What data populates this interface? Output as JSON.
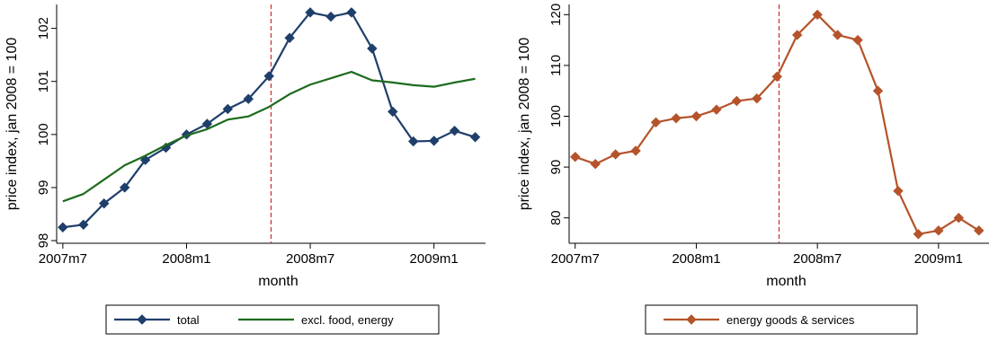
{
  "chart_data": [
    {
      "type": "line",
      "xlabel": "month",
      "ylabel": "price index, jan 2008 = 100",
      "x_ticks": [
        {
          "label": "2007m7",
          "value": 0
        },
        {
          "label": "2008m1",
          "value": 6
        },
        {
          "label": "2008m7",
          "value": 12
        },
        {
          "label": "2009m1",
          "value": 18
        }
      ],
      "y_ticks": [
        98,
        99,
        100,
        101,
        102
      ],
      "xlim": [
        -0.3,
        20.5
      ],
      "ylim": [
        97.95,
        102.45
      ],
      "reference_line": {
        "x": 10.1,
        "style": "dashed",
        "color": "#d62728"
      },
      "legend_position": "bottom",
      "series": [
        {
          "name": "total",
          "color": "#1f3f6b",
          "marker": "diamond",
          "x": [
            0,
            1,
            2,
            3,
            4,
            5,
            6,
            7,
            8,
            9,
            10,
            11,
            12,
            13,
            14,
            15,
            16,
            17,
            18,
            19,
            20
          ],
          "values": [
            98.25,
            98.3,
            98.7,
            99.0,
            99.52,
            99.75,
            100.0,
            100.2,
            100.48,
            100.67,
            101.1,
            101.82,
            102.3,
            102.22,
            102.3,
            101.62,
            100.43,
            99.87,
            99.88,
            100.07,
            99.95
          ]
        },
        {
          "name": "excl. food, energy",
          "color": "#1d6b1d",
          "marker": "none",
          "x": [
            0,
            1,
            2,
            3,
            4,
            5,
            6,
            7,
            8,
            9,
            10,
            11,
            12,
            13,
            14,
            15,
            16,
            17,
            18,
            19,
            20
          ],
          "values": [
            98.74,
            98.88,
            99.15,
            99.42,
            99.6,
            99.8,
            99.98,
            100.1,
            100.28,
            100.34,
            100.52,
            100.76,
            100.94,
            101.06,
            101.18,
            101.02,
            100.98,
            100.93,
            100.9,
            100.98,
            101.05
          ]
        }
      ]
    },
    {
      "type": "line",
      "xlabel": "month",
      "ylabel": "price index, jan 2008 = 100",
      "x_ticks": [
        {
          "label": "2007m7",
          "value": 0
        },
        {
          "label": "2008m1",
          "value": 6
        },
        {
          "label": "2008m7",
          "value": 12
        },
        {
          "label": "2009m1",
          "value": 18
        }
      ],
      "y_ticks": [
        80,
        90,
        100,
        110,
        120
      ],
      "xlim": [
        -0.3,
        20.5
      ],
      "ylim": [
        75,
        122
      ],
      "reference_line": {
        "x": 10.1,
        "style": "dashed",
        "color": "#d62728"
      },
      "legend_position": "bottom",
      "series": [
        {
          "name": "energy goods & services",
          "color": "#b5532a",
          "marker": "diamond",
          "x": [
            0,
            1,
            2,
            3,
            4,
            5,
            6,
            7,
            8,
            9,
            10,
            11,
            12,
            13,
            14,
            15,
            16,
            17,
            18,
            19,
            20
          ],
          "values": [
            92.0,
            90.6,
            92.5,
            93.2,
            98.8,
            99.6,
            100.0,
            101.3,
            103.0,
            103.5,
            107.8,
            116.0,
            120.0,
            116.0,
            115.0,
            105.0,
            85.3,
            76.8,
            77.5,
            80.0,
            77.5
          ]
        }
      ]
    }
  ]
}
